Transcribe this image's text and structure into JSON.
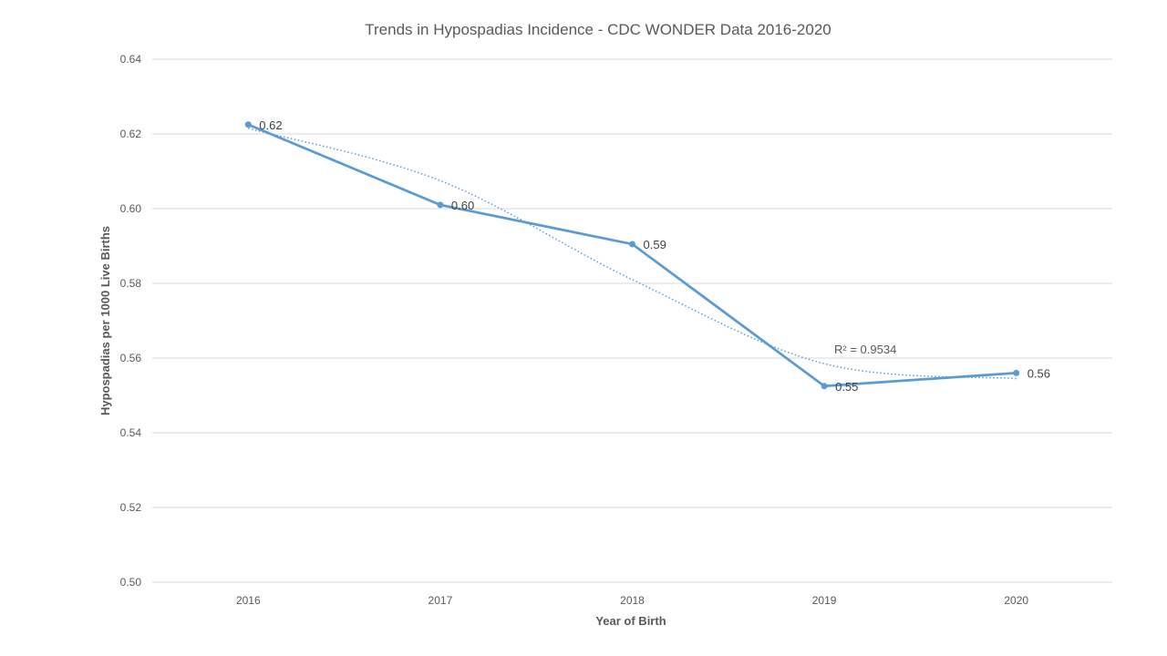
{
  "chart_data": {
    "type": "line",
    "title": "Trends in Hypospadias Incidence - CDC WONDER Data 2016-2020",
    "xlabel": "Year of Birth",
    "ylabel": "Hypospadias per 1000 Live Births",
    "categories": [
      "2016",
      "2017",
      "2018",
      "2019",
      "2020"
    ],
    "series": [
      {
        "values": [
          0.6225,
          0.601,
          0.5905,
          0.5525,
          0.556
        ],
        "data_labels": [
          "0.62",
          "0.60",
          "0.59",
          "0.55",
          "0.56"
        ],
        "color": "#5b9bd5"
      }
    ],
    "trendline": {
      "style": "dotted",
      "color": "#5b9bd5",
      "r_squared_label": "R² = 0.9534",
      "values": [
        0.6215,
        0.6075,
        0.581,
        0.5585,
        0.5545
      ]
    },
    "ylim": [
      0.5,
      0.64
    ],
    "yticks": [
      "0.64",
      "0.62",
      "0.60",
      "0.58",
      "0.56",
      "0.54",
      "0.52",
      "0.50"
    ],
    "grid": true,
    "legend": "none"
  }
}
